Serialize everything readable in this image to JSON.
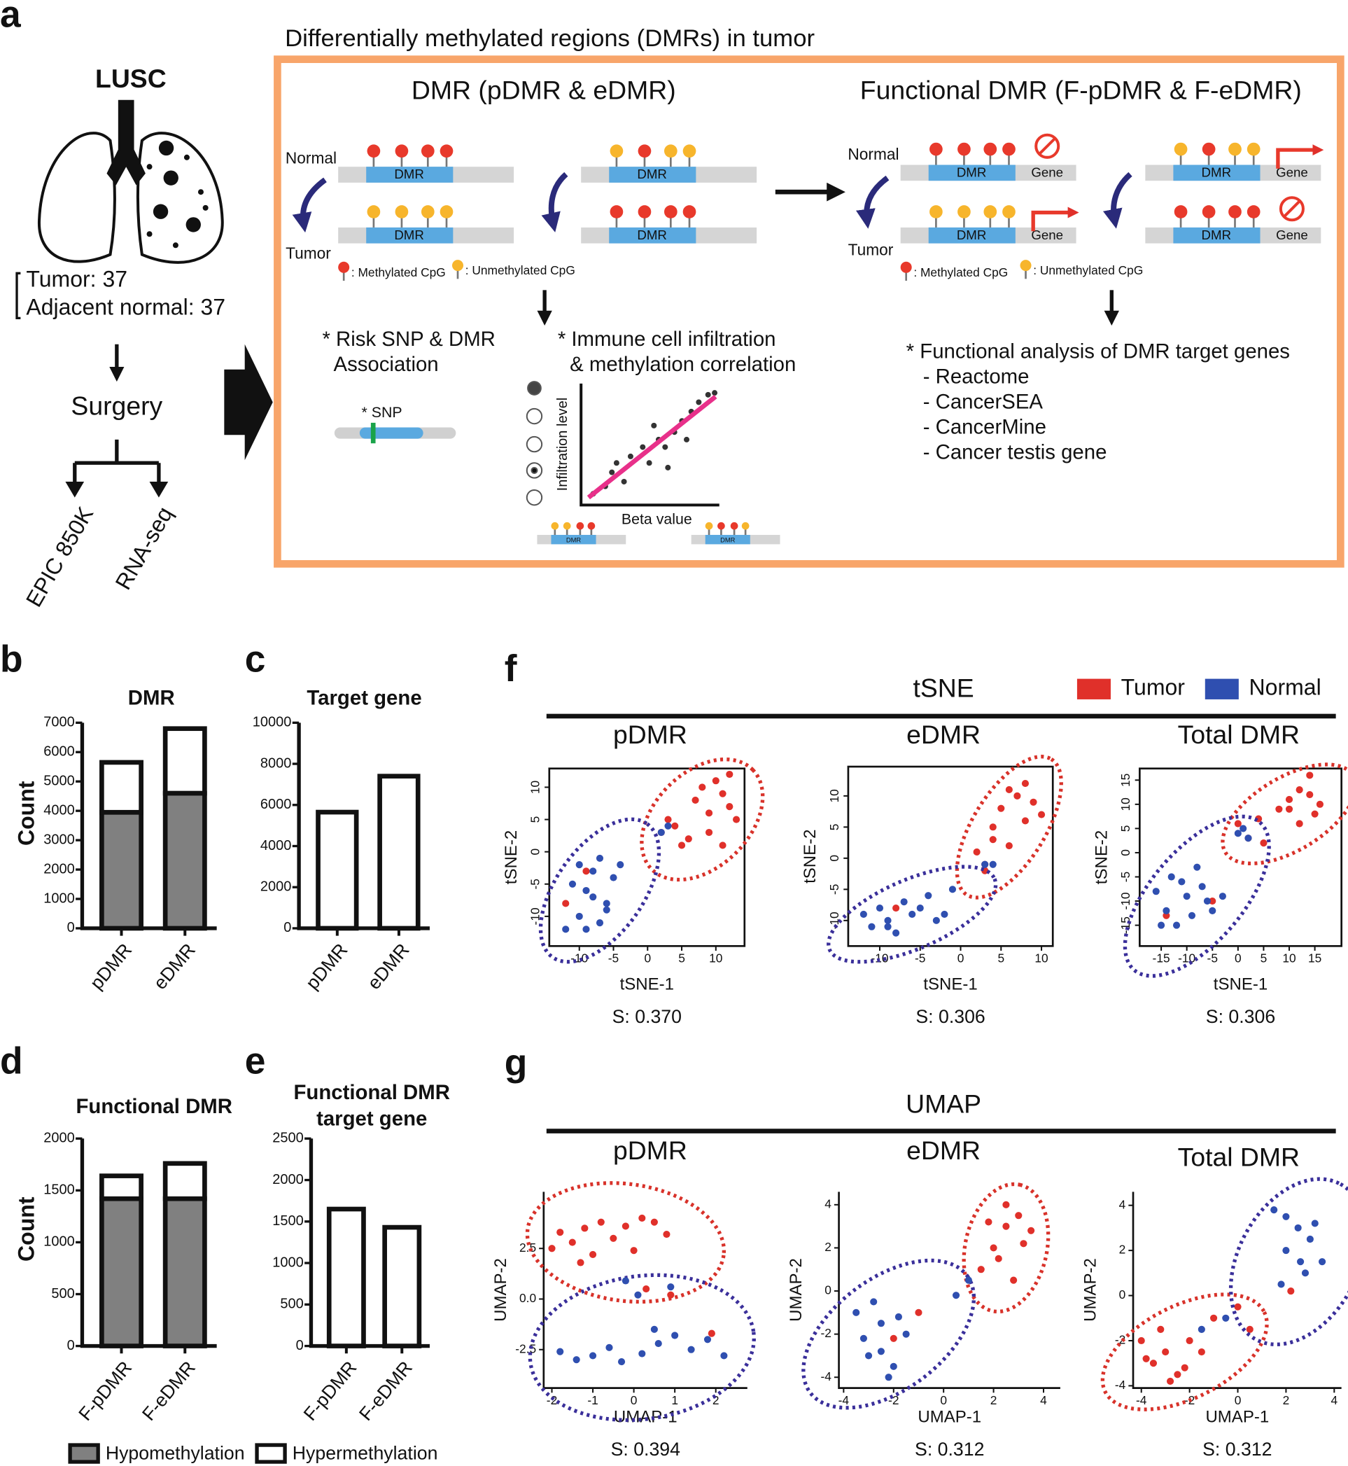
{
  "panel_a": {
    "label": "a",
    "cohort": "LUSC",
    "tumor_count": "Tumor: 37",
    "normal_count": "Adjacent normal: 37",
    "surgery": "Surgery",
    "platforms": [
      "EPIC 850K",
      "RNA-seq"
    ],
    "title": "Differentially methylated regions (DMRs) in tumor",
    "dmr_title": "DMR (pDMR & eDMR)",
    "fdmr_title": "Functional DMR (F-pDMR & F-eDMR)",
    "normal_label": "Normal",
    "tumor_label": "Tumor",
    "dmr_box": "DMR",
    "gene_box": "Gene",
    "methylated": ": Methylated CpG",
    "unmethylated": ": Unmethylated CpG",
    "snp_text": [
      "* Risk SNP & DMR",
      "Association"
    ],
    "snp": "* SNP",
    "immune_text": [
      "* Immune cell infiltration",
      "& methylation correlation"
    ],
    "infiltration": "Infiltration level",
    "beta": "Beta value",
    "functional_text": [
      "* Functional analysis of DMR target genes",
      "- Reactome",
      "- CancerSEA",
      "- CancerMine",
      "- Cancer testis gene"
    ]
  },
  "tsne_group": {
    "label": "f",
    "title": "tSNE"
  },
  "umap_group": {
    "label": "g",
    "title": "UMAP"
  },
  "chart_data": [
    {
      "type": "bar",
      "label": "b",
      "title": "DMR",
      "y_label": "Count",
      "stacked": true,
      "categories": [
        "pDMR",
        "eDMR"
      ],
      "series": [
        {
          "color": "#808080",
          "values": [
            3950,
            4600
          ]
        },
        {
          "color": "#ffffff",
          "values": [
            1700,
            2200
          ]
        }
      ],
      "ylim": [
        0,
        7000
      ],
      "yticks": [
        0,
        1000,
        2000,
        3000,
        4000,
        5000,
        6000,
        7000
      ]
    },
    {
      "type": "bar",
      "label": "c",
      "title": "Target gene",
      "categories": [
        "pDMR",
        "eDMR"
      ],
      "series": [
        {
          "color": "#ffffff",
          "values": [
            5650,
            7400
          ]
        }
      ],
      "ylim": [
        0,
        10000
      ],
      "yticks": [
        0,
        2000,
        4000,
        6000,
        8000,
        10000
      ]
    },
    {
      "type": "bar",
      "label": "d",
      "title": "Functional DMR",
      "y_label": "Count",
      "stacked": true,
      "categories": [
        "F-pDMR",
        "F-eDMR"
      ],
      "series": [
        {
          "name": "Hypomethylation",
          "color": "#808080",
          "values": [
            1420,
            1420
          ]
        },
        {
          "name": "Hypermethylation",
          "color": "#ffffff",
          "values": [
            220,
            340
          ]
        }
      ],
      "ylim": [
        0,
        2000
      ],
      "yticks": [
        0,
        500,
        1000,
        1500,
        2000
      ]
    },
    {
      "type": "bar",
      "label": "e",
      "title": [
        "Functional DMR",
        "target gene"
      ],
      "categories": [
        "F-pDMR",
        "F-eDMR"
      ],
      "series": [
        {
          "color": "#ffffff",
          "values": [
            1650,
            1430
          ]
        }
      ],
      "ylim": [
        0,
        2500
      ],
      "yticks": [
        0,
        500,
        1000,
        1500,
        2000,
        2500
      ]
    },
    {
      "type": "scatter",
      "subtitle": "pDMR",
      "x_label": "tSNE-1",
      "y_label": "tSNE-2",
      "annotation": "S: 0.370",
      "frame": true,
      "xlim": [
        -14.4,
        14.2
      ],
      "ylim": [
        -14.6,
        12.9
      ],
      "xticks": [
        -10,
        -5,
        0,
        5,
        10
      ],
      "yticks": [
        -10,
        -5,
        0,
        5,
        10
      ],
      "series": [
        {
          "name": "Tumor",
          "color": "#e0302a",
          "x": [
            2,
            4,
            6,
            7,
            8,
            9,
            10,
            11,
            12,
            13,
            9,
            11,
            5,
            3,
            12,
            -12,
            -9
          ],
          "values": [
            3,
            4,
            2,
            8,
            10,
            6,
            11,
            9,
            7,
            5,
            3,
            1,
            1,
            5,
            12,
            -8,
            -3
          ]
        },
        {
          "name": "Normal",
          "color": "#2f4fb0",
          "x": [
            -12,
            -10,
            -9,
            -8,
            -7,
            -6,
            -5,
            -4,
            -11,
            -9,
            -7,
            -6,
            -10,
            -8,
            2,
            3
          ],
          "values": [
            -12,
            -10,
            -6,
            -3,
            -1,
            -8,
            -4,
            -2,
            -5,
            -12,
            -11,
            -9,
            -2,
            -7,
            3,
            4
          ]
        }
      ]
    },
    {
      "type": "scatter",
      "subtitle": "eDMR",
      "x_label": "tSNE-1",
      "y_label": "tSNE-2",
      "annotation": "S: 0.306",
      "frame": true,
      "xlim": [
        -13.9,
        11.4
      ],
      "ylim": [
        -14.1,
        14.7
      ],
      "xticks": [
        -10,
        -5,
        0,
        5,
        10
      ],
      "yticks": [
        -10,
        -5,
        0,
        5,
        10
      ],
      "series": [
        {
          "color": "#e0302a",
          "x": [
            2,
            3,
            4,
            5,
            6,
            7,
            8,
            9,
            10,
            4,
            6,
            8,
            3,
            -8
          ],
          "values": [
            1,
            -1,
            5,
            8,
            11,
            10,
            12,
            9,
            7,
            3,
            2,
            6,
            -2,
            -8
          ]
        },
        {
          "color": "#2f4fb0",
          "x": [
            -12,
            -11,
            -10,
            -9,
            -8,
            -7,
            -6,
            -5,
            -4,
            -3,
            -2,
            -1,
            3,
            4,
            -9
          ],
          "values": [
            -9,
            -11,
            -8,
            -10,
            -12,
            -7,
            -9,
            -8,
            -6,
            -10,
            -9,
            -5,
            -1,
            -1,
            -11
          ]
        }
      ]
    },
    {
      "type": "scatter",
      "subtitle": "Total DMR",
      "x_label": "tSNE-1",
      "y_label": "tSNE-2",
      "annotation": "S: 0.306",
      "frame": true,
      "xlim": [
        -19.2,
        20.2
      ],
      "ylim": [
        -19.3,
        17.4
      ],
      "xticks": [
        -15,
        -10,
        -5,
        0,
        5,
        10,
        15
      ],
      "yticks": [
        -15,
        -10,
        -5,
        0,
        5,
        10,
        15
      ],
      "series": [
        {
          "color": "#e0302a",
          "x": [
            0,
            2,
            4,
            5,
            8,
            10,
            12,
            14,
            15,
            16,
            12,
            10,
            14,
            -14,
            -5
          ],
          "values": [
            6,
            3,
            7,
            2,
            9,
            11,
            13,
            12,
            8,
            10,
            6,
            9,
            16,
            -13,
            -10
          ]
        },
        {
          "color": "#2f4fb0",
          "x": [
            -16,
            -14,
            -13,
            -12,
            -10,
            -9,
            -8,
            -7,
            -6,
            -5,
            -15,
            -11,
            -3,
            0,
            1,
            2
          ],
          "values": [
            -8,
            -12,
            -5,
            -15,
            -9,
            -13,
            -3,
            -7,
            -10,
            -12,
            -15,
            -6,
            -9,
            4,
            5,
            3
          ]
        }
      ]
    },
    {
      "type": "scatter",
      "subtitle": "pDMR",
      "x_label": "UMAP-1",
      "y_label": "UMAP-2",
      "annotation": "S: 0.394",
      "frame": false,
      "xlim": [
        -2.2,
        2.77
      ],
      "ylim": [
        -4.4,
        5.3
      ],
      "xticks": [
        -2,
        -1,
        0,
        1,
        2
      ],
      "yticks": [
        -2.5,
        {
          "value": 0,
          "label": "0.0"
        },
        2.5
      ],
      "series": [
        {
          "color": "#e0302a",
          "x": [
            -2,
            -1.8,
            -1.5,
            -1.2,
            -1,
            -0.8,
            -0.5,
            -0.2,
            0.2,
            0.5,
            0.8,
            -1.3,
            0,
            0.3,
            0.9,
            1.9
          ],
          "values": [
            2.5,
            3.3,
            2.8,
            3.5,
            2.2,
            3.8,
            3,
            3.6,
            4,
            3.8,
            3.2,
            1.8,
            2.4,
            0.5,
            0.2,
            -1.7
          ]
        },
        {
          "color": "#2f4fb0",
          "x": [
            -1.8,
            -1.4,
            -1,
            -0.6,
            -0.3,
            0.2,
            0.6,
            1,
            1.4,
            1.8,
            2.2,
            0.9,
            -0.2,
            0.1,
            0.5
          ],
          "values": [
            -2.6,
            -3,
            -2.8,
            -2.4,
            -3.1,
            -2.7,
            -2.2,
            -1.8,
            -2.5,
            -2,
            -2.8,
            0.6,
            0.9,
            0.2,
            -1.5
          ]
        }
      ]
    },
    {
      "type": "scatter",
      "subtitle": "eDMR",
      "x_label": "UMAP-1",
      "y_label": "UMAP-2",
      "annotation": "S: 0.312",
      "frame": false,
      "xlim": [
        -4.19,
        4.67
      ],
      "ylim": [
        -4.5,
        4.6
      ],
      "xticks": [
        -4,
        -2,
        0,
        2,
        4
      ],
      "yticks": [
        -4,
        -2,
        0,
        2,
        4
      ],
      "series": [
        {
          "color": "#e0302a",
          "x": [
            1.5,
            2,
            2.5,
            3,
            3.5,
            2.2,
            2.8,
            3.2,
            1.8,
            2.5,
            -2,
            -1
          ],
          "values": [
            1,
            2,
            3,
            3.5,
            2.8,
            1.5,
            0.5,
            2.2,
            3.2,
            4,
            -2.2,
            -1
          ]
        },
        {
          "color": "#2f4fb0",
          "x": [
            -3.5,
            -3,
            -2.5,
            -2,
            -1.5,
            -3.2,
            -2.2,
            -2.8,
            -1.8,
            -2.5,
            1,
            0.5
          ],
          "values": [
            -1,
            -3,
            -1.5,
            -3.5,
            -2,
            -2.2,
            -4,
            -0.5,
            -1.2,
            -2.8,
            0.5,
            -0.2
          ]
        }
      ]
    },
    {
      "type": "scatter",
      "subtitle": "Total DMR",
      "x_label": "UMAP-1",
      "y_label": "UMAP-2",
      "annotation": "S: 0.312",
      "frame": false,
      "xlim": [
        -4.34,
        4.3
      ],
      "ylim": [
        -4.1,
        4.6
      ],
      "xticks": [
        -4,
        -2,
        0,
        2,
        4
      ],
      "yticks": [
        -4,
        -2,
        0,
        2,
        4
      ],
      "series": [
        {
          "color": "#e0302a",
          "x": [
            -4,
            -3.5,
            -3,
            -2.5,
            -2,
            -3.2,
            -2.8,
            -1.5,
            -1,
            0,
            0.5,
            2.2,
            -3.8,
            -2.2
          ],
          "values": [
            -2,
            -3,
            -2.5,
            -3.5,
            -2,
            -1.5,
            -3.8,
            -2.5,
            -1,
            -0.5,
            -1.5,
            0.2,
            -2.8,
            -3.2
          ]
        },
        {
          "color": "#2f4fb0",
          "x": [
            1.5,
            2,
            2.5,
            3,
            3.5,
            2,
            2.8,
            3.2,
            1.8,
            2.6,
            -1.5,
            -0.5
          ],
          "values": [
            3.8,
            3.5,
            3,
            2.5,
            1.5,
            2,
            1,
            3.2,
            0.5,
            1.5,
            -1.5,
            -1
          ]
        }
      ]
    }
  ]
}
